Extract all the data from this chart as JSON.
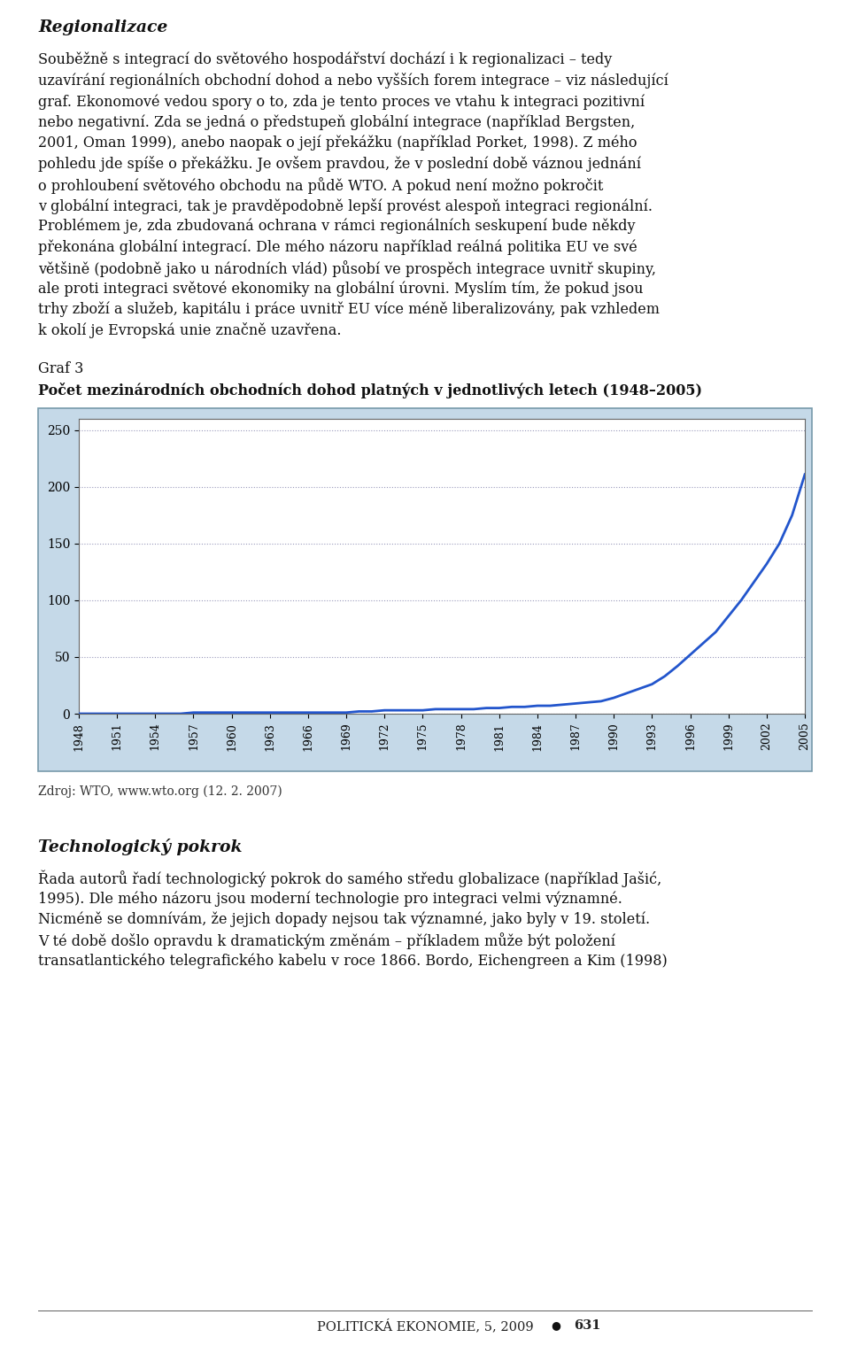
{
  "page_bg": "#ffffff",
  "title_section": "Regionalizace",
  "graf_label": "Graf 3",
  "graf_title": "Počet mezinárodních obchodních dohod platných v jednotlivých letech (1948–2005)",
  "source_text": "Zdroj: WTO, www.wto.org (12. 2. 2007)",
  "section2_title": "Technologický pokrok",
  "footer_text": "POLITICKÁ EKONOMIE, 5, 2009",
  "footer_page": "631",
  "chart_bg": "#c5d9e8",
  "chart_plot_bg": "#ffffff",
  "line_color": "#2255cc",
  "years": [
    1948,
    1949,
    1950,
    1951,
    1952,
    1953,
    1954,
    1955,
    1956,
    1957,
    1958,
    1959,
    1960,
    1961,
    1962,
    1963,
    1964,
    1965,
    1966,
    1967,
    1968,
    1969,
    1970,
    1971,
    1972,
    1973,
    1974,
    1975,
    1976,
    1977,
    1978,
    1979,
    1980,
    1981,
    1982,
    1983,
    1984,
    1985,
    1986,
    1987,
    1988,
    1989,
    1990,
    1991,
    1992,
    1993,
    1994,
    1995,
    1996,
    1997,
    1998,
    1999,
    2000,
    2001,
    2002,
    2003,
    2004,
    2005
  ],
  "values": [
    0,
    0,
    0,
    0,
    0,
    0,
    0,
    0,
    0,
    1,
    1,
    1,
    1,
    1,
    1,
    1,
    1,
    1,
    1,
    1,
    1,
    1,
    2,
    2,
    3,
    3,
    3,
    3,
    4,
    4,
    4,
    4,
    5,
    5,
    6,
    6,
    7,
    7,
    8,
    9,
    10,
    11,
    14,
    18,
    22,
    26,
    33,
    42,
    52,
    62,
    72,
    86,
    100,
    116,
    132,
    150,
    175,
    211
  ],
  "yticks": [
    0,
    50,
    100,
    150,
    200,
    250
  ],
  "xtick_years": [
    1948,
    1951,
    1954,
    1957,
    1960,
    1963,
    1966,
    1969,
    1972,
    1975,
    1978,
    1981,
    1984,
    1987,
    1990,
    1993,
    1996,
    1999,
    2002,
    2005
  ],
  "grid_color": "#9999bb",
  "grid_style": ":",
  "para1_lines": [
    "Souběžně s integrací do světového hospodářství dochází i k regionalizaci – tedy",
    "uzavírání regionálních obchodní dohod a nebo vyšších forem integrace – viz následující",
    "graf. Ekonomové vedou spory o to, zda je tento proces ve vtahu k integraci pozitivní",
    "nebo negativní. Zda se jedná o předstupeň globální integrace (například Bergsten,",
    "2001, Oman 1999), anebo naopak o její překážku (například Porket, 1998). Z mého",
    "pohledu jde spíše o překážku. Je ovšem pravdou, že v poslední době váznou jednání",
    "o prohloubení světového obchodu na půdě WTO. A pokud není možno pokročit",
    "v globální integraci, tak je pravděpodobně lepší provést alespoň integraci regionální.",
    "Problémem je, zda zbudovaná ochrana v rámci regionálních seskupení bude někdy",
    "překonána globální integrací. Dle mého názoru například reálná politika EU ve své",
    "většině (podobně jako u národních vlád) působí ve prospěch integrace uvnitř skupiny,",
    "ale proti integraci světové ekonomiky na globální úrovni. Myslím tím, že pokud jsou",
    "trhy zboží a služeb, kapitálu i práce uvnitř EU více méně liberalizovány, pak vzhledem",
    "k okolí je Evropská unie značně uzavřena."
  ],
  "para2_lines": [
    "Řada autorů řadí technologický pokrok do samého středu globalizace (například Jašić,",
    "1995). Dle mého názoru jsou moderní technologie pro integraci velmi významné.",
    "Nicméně se domnívám, že jejich dopady nejsou tak významné, jako byly v 19. století.",
    "V té době došlo opravdu k dramatickým změnám – příkladem může být položení",
    "transatlantického telegrafického kabelu v roce 1866. Bordo, Eichengreen a Kim (1998)"
  ]
}
